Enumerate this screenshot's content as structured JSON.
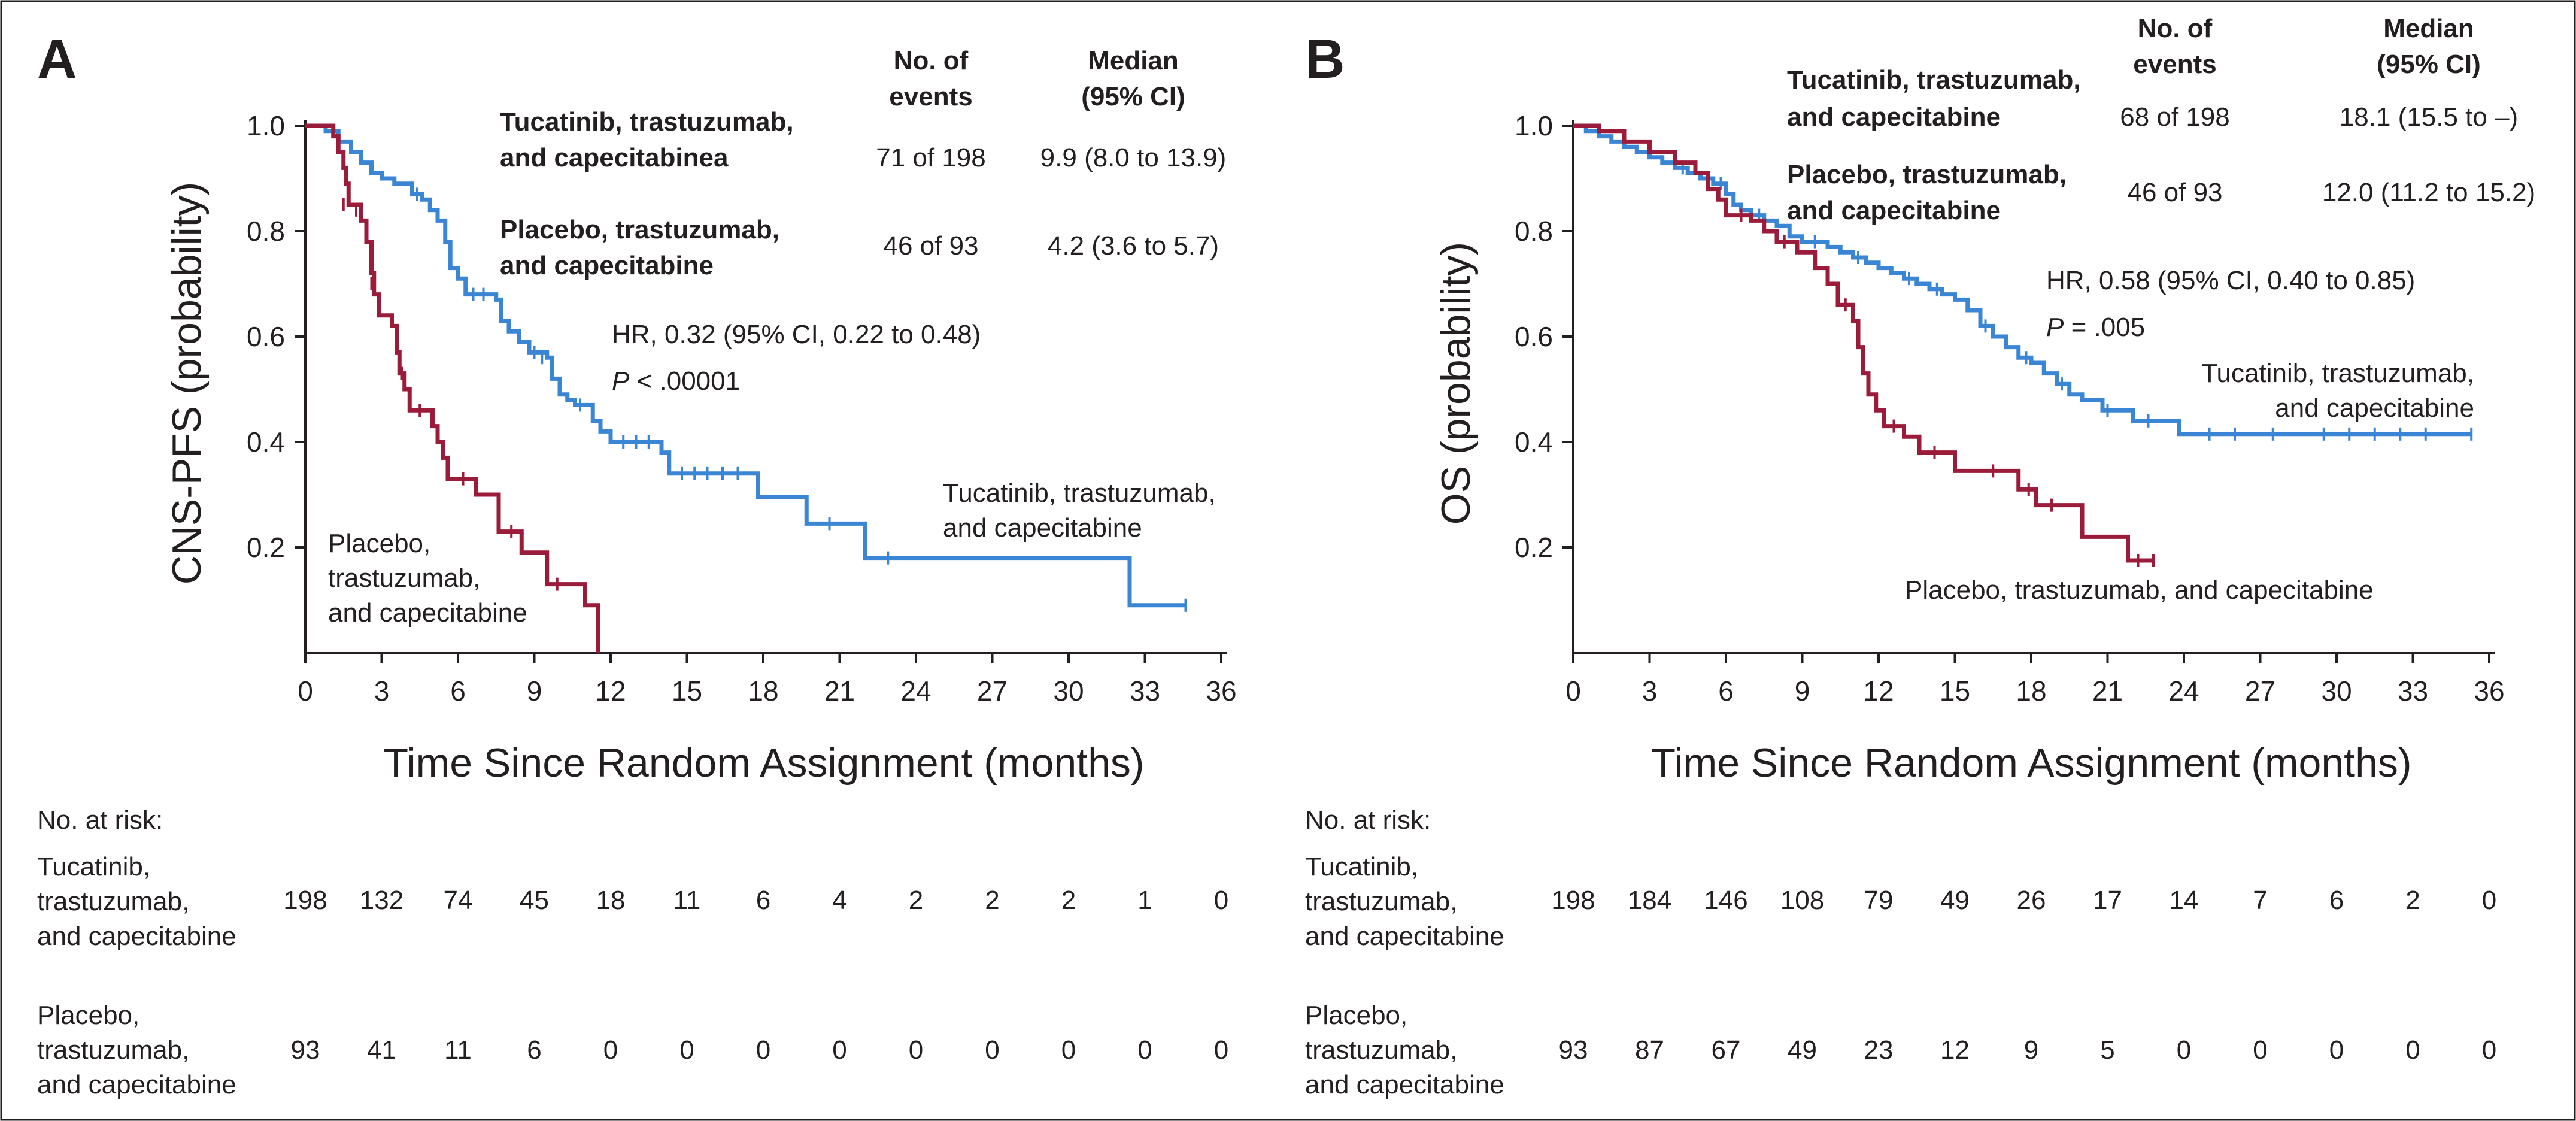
{
  "chart_data": [
    {
      "type": "line",
      "panel": "A",
      "ylabel": "CNS-PFS (probability)",
      "xlabel": "Time Since Random Assignment (months)",
      "xticks": [
        "0",
        "3",
        "6",
        "9",
        "12",
        "15",
        "18",
        "21",
        "24",
        "27",
        "30",
        "33",
        "36"
      ],
      "yticks": [
        "0.2",
        "0.4",
        "0.6",
        "0.8",
        "1.0"
      ],
      "xlim": [
        0,
        36
      ],
      "ylim": [
        0,
        1.0
      ],
      "legend": {
        "col_events_line1": "No. of",
        "col_events_line2": "events",
        "col_median_line1": "Median",
        "col_median_line2": "(95% CI)",
        "rows": [
          {
            "label_line1": "Tucatinib, trastuzumab,",
            "label_line2": "and capecitabinea",
            "events": "71 of 198",
            "median": "9.9 (8.0 to 13.9)"
          },
          {
            "label_line1": "Placebo, trastuzumab,",
            "label_line2": "and capecitabine",
            "events": "46 of 93",
            "median": "4.2 (3.6 to 5.7)"
          }
        ]
      },
      "hr_text": "HR, 0.32 (95% CI, 0.22 to 0.48)",
      "p_italic": "P",
      "p_rest": " < .00001",
      "curve_labels": {
        "tucatinib_line1": "Tucatinib, trastuzumab,",
        "tucatinib_line2": "and capecitabine",
        "placebo_line1": "Placebo,",
        "placebo_line2": "trastuzumab,",
        "placebo_line3": "and capecitabine"
      },
      "series": [
        {
          "name": "Tucatinib, trastuzumab, and capecitabine",
          "color": "#3a86d4",
          "steps": [
            [
              0,
              1.0
            ],
            [
              0.8,
              0.99
            ],
            [
              1.3,
              0.97
            ],
            [
              1.8,
              0.95
            ],
            [
              2.2,
              0.93
            ],
            [
              2.6,
              0.91
            ],
            [
              3.0,
              0.9
            ],
            [
              3.5,
              0.89
            ],
            [
              4.2,
              0.87
            ],
            [
              4.6,
              0.86
            ],
            [
              4.9,
              0.84
            ],
            [
              5.2,
              0.82
            ],
            [
              5.5,
              0.78
            ],
            [
              5.7,
              0.73
            ],
            [
              6.0,
              0.71
            ],
            [
              6.3,
              0.68
            ],
            [
              7.5,
              0.67
            ],
            [
              7.7,
              0.63
            ],
            [
              8.0,
              0.61
            ],
            [
              8.4,
              0.59
            ],
            [
              8.8,
              0.57
            ],
            [
              9.5,
              0.56
            ],
            [
              9.7,
              0.52
            ],
            [
              10.0,
              0.49
            ],
            [
              10.3,
              0.48
            ],
            [
              10.6,
              0.47
            ],
            [
              11.3,
              0.44
            ],
            [
              11.6,
              0.42
            ],
            [
              12.0,
              0.4
            ],
            [
              14.0,
              0.38
            ],
            [
              14.3,
              0.34
            ],
            [
              17.8,
              0.295
            ],
            [
              19.7,
              0.245
            ],
            [
              22.0,
              0.18
            ],
            [
              32.4,
              0.09
            ],
            [
              34.6,
              0.09
            ]
          ],
          "censors": [
            [
              4.4,
              0.87
            ],
            [
              6.6,
              0.68
            ],
            [
              7.0,
              0.68
            ],
            [
              9.0,
              0.57
            ],
            [
              9.3,
              0.56
            ],
            [
              10.8,
              0.47
            ],
            [
              12.5,
              0.4
            ],
            [
              13.0,
              0.4
            ],
            [
              13.5,
              0.4
            ],
            [
              14.8,
              0.34
            ],
            [
              15.3,
              0.34
            ],
            [
              15.8,
              0.34
            ],
            [
              16.4,
              0.34
            ],
            [
              17.0,
              0.34
            ],
            [
              20.6,
              0.245
            ],
            [
              22.9,
              0.18
            ],
            [
              34.6,
              0.09
            ]
          ]
        },
        {
          "name": "Placebo, trastuzumab, and capecitabine",
          "color": "#9b1b3a",
          "steps": [
            [
              0,
              1.0
            ],
            [
              1.1,
              0.98
            ],
            [
              1.3,
              0.95
            ],
            [
              1.5,
              0.92
            ],
            [
              1.6,
              0.89
            ],
            [
              1.7,
              0.85
            ],
            [
              2.2,
              0.82
            ],
            [
              2.4,
              0.78
            ],
            [
              2.6,
              0.72
            ],
            [
              2.7,
              0.68
            ],
            [
              2.9,
              0.64
            ],
            [
              3.4,
              0.62
            ],
            [
              3.6,
              0.57
            ],
            [
              3.7,
              0.53
            ],
            [
              3.9,
              0.5
            ],
            [
              4.1,
              0.46
            ],
            [
              5.0,
              0.43
            ],
            [
              5.2,
              0.4
            ],
            [
              5.4,
              0.37
            ],
            [
              5.6,
              0.33
            ],
            [
              6.7,
              0.3
            ],
            [
              7.6,
              0.23
            ],
            [
              8.5,
              0.19
            ],
            [
              9.5,
              0.13
            ],
            [
              11.0,
              0.09
            ],
            [
              11.5,
              0.0
            ]
          ],
          "censors": [
            [
              1.5,
              0.85
            ],
            [
              2.0,
              0.84
            ],
            [
              2.6,
              0.7
            ],
            [
              3.8,
              0.53
            ],
            [
              4.5,
              0.46
            ],
            [
              6.2,
              0.33
            ],
            [
              8.1,
              0.23
            ],
            [
              9.9,
              0.13
            ]
          ]
        }
      ],
      "risk_table": {
        "title": "No. at risk:",
        "rows": [
          {
            "label_line1": "Tucatinib,",
            "label_line2": "trastuzumab,",
            "label_line3": "and capecitabine",
            "values": [
              "198",
              "132",
              "74",
              "45",
              "18",
              "11",
              "6",
              "4",
              "2",
              "2",
              "2",
              "1",
              "0"
            ]
          },
          {
            "label_line1": "Placebo,",
            "label_line2": "trastuzumab,",
            "label_line3": "and capecitabine",
            "values": [
              "93",
              "41",
              "11",
              "6",
              "0",
              "0",
              "0",
              "0",
              "0",
              "0",
              "0",
              "0",
              "0"
            ]
          }
        ]
      }
    },
    {
      "type": "line",
      "panel": "B",
      "ylabel": "OS (probability)",
      "xlabel": "Time Since Random Assignment (months)",
      "xticks": [
        "0",
        "3",
        "6",
        "9",
        "12",
        "15",
        "18",
        "21",
        "24",
        "27",
        "30",
        "33",
        "36"
      ],
      "yticks": [
        "0.2",
        "0.4",
        "0.6",
        "0.8",
        "1.0"
      ],
      "xlim": [
        0,
        36
      ],
      "ylim": [
        0,
        1.0
      ],
      "legend": {
        "col_events_line1": "No. of",
        "col_events_line2": "events",
        "col_median_line1": "Median",
        "col_median_line2": "(95% CI)",
        "rows": [
          {
            "label_line1": "Tucatinib, trastuzumab,",
            "label_line2": "and capecitabine",
            "events": "68 of 198",
            "median": "18.1 (15.5 to –)"
          },
          {
            "label_line1": "Placebo, trastuzumab,",
            "label_line2": "and capecitabine",
            "events": "46 of 93",
            "median": "12.0 (11.2 to 15.2)"
          }
        ]
      },
      "hr_text": "HR, 0.58 (95% CI, 0.40 to 0.85)",
      "p_italic": "P",
      "p_rest": " = .005",
      "curve_labels": {
        "tucatinib_line1": "Tucatinib, trastuzumab,",
        "tucatinib_line2": "and capecitabine",
        "placebo_line1": "Placebo, trastuzumab, and capecitabine"
      },
      "series": [
        {
          "name": "Tucatinib, trastuzumab, and capecitabine",
          "color": "#3a86d4",
          "steps": [
            [
              0,
              1.0
            ],
            [
              0.5,
              0.99
            ],
            [
              1.0,
              0.98
            ],
            [
              1.5,
              0.97
            ],
            [
              2.0,
              0.96
            ],
            [
              2.5,
              0.95
            ],
            [
              3.0,
              0.94
            ],
            [
              3.5,
              0.93
            ],
            [
              4.0,
              0.92
            ],
            [
              4.5,
              0.91
            ],
            [
              5.0,
              0.9
            ],
            [
              5.5,
              0.89
            ],
            [
              6.0,
              0.87
            ],
            [
              6.3,
              0.85
            ],
            [
              6.6,
              0.84
            ],
            [
              7.0,
              0.83
            ],
            [
              7.5,
              0.82
            ],
            [
              8.0,
              0.81
            ],
            [
              8.5,
              0.79
            ],
            [
              9.0,
              0.78
            ],
            [
              10.0,
              0.77
            ],
            [
              10.5,
              0.76
            ],
            [
              11.0,
              0.75
            ],
            [
              11.5,
              0.74
            ],
            [
              12.0,
              0.73
            ],
            [
              12.5,
              0.72
            ],
            [
              13.0,
              0.71
            ],
            [
              13.5,
              0.7
            ],
            [
              14.0,
              0.69
            ],
            [
              14.5,
              0.68
            ],
            [
              15.0,
              0.67
            ],
            [
              15.5,
              0.65
            ],
            [
              16.0,
              0.62
            ],
            [
              16.5,
              0.6
            ],
            [
              17.0,
              0.58
            ],
            [
              17.5,
              0.56
            ],
            [
              18.0,
              0.55
            ],
            [
              18.5,
              0.53
            ],
            [
              19.0,
              0.51
            ],
            [
              19.5,
              0.49
            ],
            [
              20.0,
              0.48
            ],
            [
              20.8,
              0.46
            ],
            [
              22.0,
              0.44
            ],
            [
              23.8,
              0.415
            ],
            [
              35.3,
              0.415
            ]
          ],
          "censors": [
            [
              4.3,
              0.92
            ],
            [
              5.8,
              0.89
            ],
            [
              7.3,
              0.83
            ],
            [
              9.5,
              0.78
            ],
            [
              11.2,
              0.75
            ],
            [
              13.2,
              0.71
            ],
            [
              14.3,
              0.69
            ],
            [
              16.2,
              0.62
            ],
            [
              17.8,
              0.56
            ],
            [
              19.2,
              0.51
            ],
            [
              21.0,
              0.46
            ],
            [
              22.6,
              0.44
            ],
            [
              25.0,
              0.415
            ],
            [
              26.0,
              0.415
            ],
            [
              27.5,
              0.415
            ],
            [
              29.5,
              0.415
            ],
            [
              30.5,
              0.415
            ],
            [
              31.5,
              0.415
            ],
            [
              32.5,
              0.415
            ],
            [
              33.5,
              0.415
            ],
            [
              35.3,
              0.415
            ]
          ]
        },
        {
          "name": "Placebo, trastuzumab, and capecitabine",
          "color": "#9b1b3a",
          "steps": [
            [
              0,
              1.0
            ],
            [
              1.0,
              0.99
            ],
            [
              2.0,
              0.97
            ],
            [
              3.0,
              0.95
            ],
            [
              4.0,
              0.93
            ],
            [
              4.8,
              0.91
            ],
            [
              5.3,
              0.88
            ],
            [
              5.7,
              0.86
            ],
            [
              6.0,
              0.83
            ],
            [
              7.0,
              0.82
            ],
            [
              7.5,
              0.8
            ],
            [
              8.0,
              0.78
            ],
            [
              8.8,
              0.76
            ],
            [
              9.5,
              0.73
            ],
            [
              10.0,
              0.7
            ],
            [
              10.4,
              0.66
            ],
            [
              11.0,
              0.63
            ],
            [
              11.2,
              0.58
            ],
            [
              11.4,
              0.53
            ],
            [
              11.6,
              0.49
            ],
            [
              11.9,
              0.46
            ],
            [
              12.2,
              0.43
            ],
            [
              13.0,
              0.41
            ],
            [
              13.6,
              0.38
            ],
            [
              15.0,
              0.345
            ],
            [
              17.5,
              0.31
            ],
            [
              18.2,
              0.28
            ],
            [
              20.0,
              0.22
            ],
            [
              21.8,
              0.175
            ],
            [
              22.8,
              0.175
            ]
          ],
          "censors": [
            [
              6.6,
              0.83
            ],
            [
              8.3,
              0.78
            ],
            [
              10.7,
              0.66
            ],
            [
              12.6,
              0.43
            ],
            [
              14.2,
              0.38
            ],
            [
              16.5,
              0.345
            ],
            [
              17.9,
              0.31
            ],
            [
              18.8,
              0.28
            ],
            [
              22.2,
              0.175
            ],
            [
              22.8,
              0.175
            ]
          ]
        }
      ],
      "risk_table": {
        "title": "No. at risk:",
        "rows": [
          {
            "label_line1": "Tucatinib,",
            "label_line2": "trastuzumab,",
            "label_line3": "and capecitabine",
            "values": [
              "198",
              "184",
              "146",
              "108",
              "79",
              "49",
              "26",
              "17",
              "14",
              "7",
              "6",
              "2",
              "0"
            ]
          },
          {
            "label_line1": "Placebo,",
            "label_line2": "trastuzumab,",
            "label_line3": "and capecitabine",
            "values": [
              "93",
              "87",
              "67",
              "49",
              "23",
              "12",
              "9",
              "5",
              "0",
              "0",
              "0",
              "0",
              "0"
            ]
          }
        ]
      }
    }
  ]
}
